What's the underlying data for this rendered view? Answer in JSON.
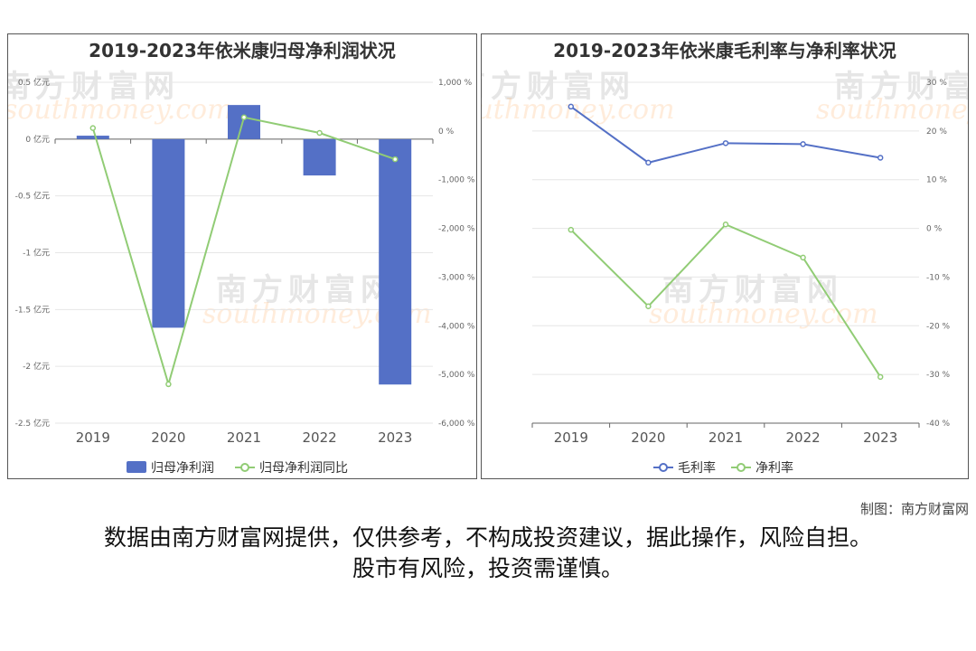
{
  "watermark": {
    "cn": "南方财富网",
    "en": "southmoney.com"
  },
  "credit": "制图：南方财富网",
  "disclaimer": {
    "line1": "数据由南方财富网提供，仅供参考，不构成投资建议，据此操作，风险自担。",
    "line2": "股市有风险，投资需谨慎。"
  },
  "chart_data": [
    {
      "type": "bar",
      "title": "2019-2023年依米康归母净利润状况",
      "categories": [
        "2019",
        "2020",
        "2021",
        "2022",
        "2023"
      ],
      "left_axis": {
        "ticks": [
          0.5,
          0,
          -0.5,
          -1,
          -1.5,
          -2,
          -2.5
        ],
        "tick_labels": [
          "0.5 亿元",
          "0 亿元",
          "-0.5 亿元",
          "-1 亿元",
          "-1.5 亿元",
          "-2 亿元",
          "-2.5 亿元"
        ],
        "ylim": [
          -2.5,
          0.5
        ]
      },
      "right_axis": {
        "ticks": [
          1000,
          0,
          -1000,
          -2000,
          -3000,
          -4000,
          -5000,
          -6000
        ],
        "tick_labels": [
          "1,000 %",
          "0 %",
          "-1,000 %",
          "-2,000 %",
          "-3,000 %",
          "-4,000 %",
          "-5,000 %",
          "-6,000 %"
        ],
        "ylim": [
          -6000,
          1000
        ]
      },
      "series": [
        {
          "name": "归母净利润",
          "type": "bar",
          "axis": "left",
          "color": "#5470c6",
          "values": [
            0.03,
            -1.66,
            0.3,
            -0.32,
            -2.16
          ]
        },
        {
          "name": "归母净利润同比",
          "type": "line",
          "axis": "right",
          "color": "#91cc75",
          "values": [
            60,
            -5200,
            280,
            -40,
            -580
          ]
        }
      ],
      "legend_position": "bottom",
      "grid": true
    },
    {
      "type": "line",
      "title": "2019-2023年依米康毛利率与净利率状况",
      "categories": [
        "2019",
        "2020",
        "2021",
        "2022",
        "2023"
      ],
      "right_axis": {
        "ticks": [
          30,
          20,
          10,
          0,
          -10,
          -20,
          -30,
          -40
        ],
        "tick_labels": [
          "30 %",
          "20 %",
          "10 %",
          "0 %",
          "-10 %",
          "-20 %",
          "-30 %",
          "-40 %"
        ],
        "ylim": [
          -40,
          30
        ]
      },
      "series": [
        {
          "name": "毛利率",
          "type": "line",
          "axis": "right",
          "color": "#5470c6",
          "values": [
            25,
            13.5,
            17.5,
            17.3,
            14.5
          ]
        },
        {
          "name": "净利率",
          "type": "line",
          "axis": "right",
          "color": "#91cc75",
          "values": [
            -0.3,
            -16,
            0.8,
            -6,
            -30.5
          ]
        }
      ],
      "legend_position": "bottom",
      "grid": true
    }
  ]
}
